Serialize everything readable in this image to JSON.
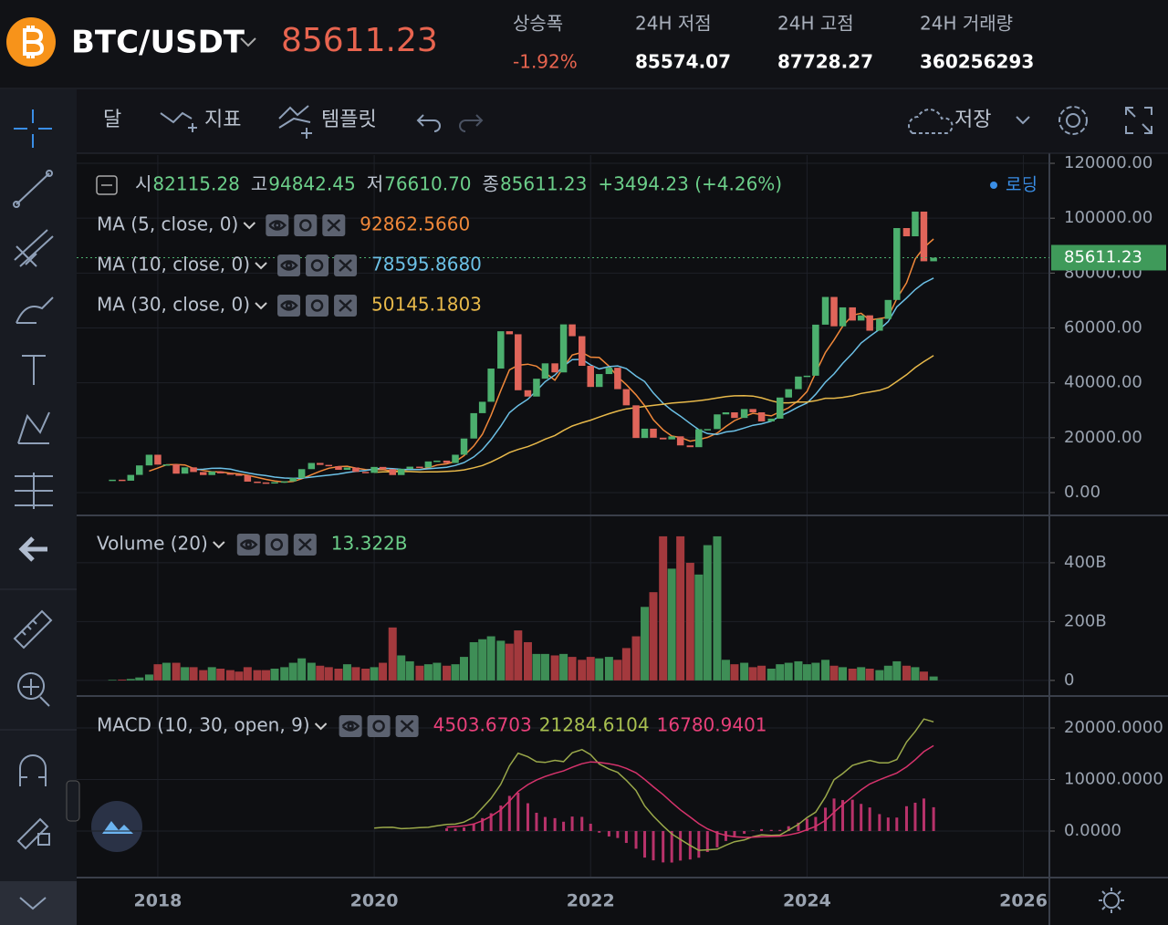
{
  "header": {
    "pair": "BTC/USDT",
    "price": "85611.23",
    "stats": [
      {
        "label": "상승폭",
        "value": "-1.92%"
      },
      {
        "label": "24H 저점",
        "value": "85574.07"
      },
      {
        "label": "24H 고점",
        "value": "87728.27"
      },
      {
        "label": "24H 거래량",
        "value": "360256293"
      }
    ]
  },
  "toolbar": {
    "interval": "달",
    "indicators": "지표",
    "templates": "템플릿",
    "save": "저장"
  },
  "chart_data": [
    {
      "type": "candlestick",
      "up_color": "#4caf6e",
      "down_color": "#e0655a",
      "x": [
        2017.58,
        2017.67,
        2017.75,
        2017.83,
        2017.92,
        2018.0,
        2018.08,
        2018.17,
        2018.25,
        2018.33,
        2018.42,
        2018.5,
        2018.58,
        2018.67,
        2018.75,
        2018.83,
        2018.92,
        2019.0,
        2019.08,
        2019.17,
        2019.25,
        2019.33,
        2019.42,
        2019.5,
        2019.58,
        2019.67,
        2019.75,
        2019.83,
        2019.92,
        2020.0,
        2020.08,
        2020.17,
        2020.25,
        2020.33,
        2020.42,
        2020.5,
        2020.58,
        2020.67,
        2020.75,
        2020.83,
        2020.92,
        2021.0,
        2021.08,
        2021.17,
        2021.25,
        2021.33,
        2021.42,
        2021.5,
        2021.58,
        2021.67,
        2021.75,
        2021.83,
        2021.92,
        2022.0,
        2022.08,
        2022.17,
        2022.25,
        2022.33,
        2022.42,
        2022.5,
        2022.58,
        2022.67,
        2022.75,
        2022.83,
        2022.92,
        2023.0,
        2023.08,
        2023.17,
        2023.25,
        2023.33,
        2023.42,
        2023.5,
        2023.58,
        2023.67,
        2023.75,
        2023.83,
        2023.92,
        2024.0,
        2024.08,
        2024.17,
        2024.25,
        2024.33,
        2024.42,
        2024.5,
        2024.58,
        2024.67,
        2024.75,
        2024.83,
        2024.92,
        2025.0,
        2025.08,
        2025.17
      ],
      "values": [
        4700,
        4340,
        6450,
        9900,
        13800,
        10200,
        10300,
        6900,
        9200,
        7500,
        6400,
        7700,
        7000,
        6600,
        6300,
        4000,
        3700,
        3450,
        3800,
        4100,
        5300,
        8550,
        10800,
        10100,
        9600,
        8300,
        9150,
        7550,
        7200,
        9350,
        8550,
        6400,
        8650,
        9450,
        9140,
        11350,
        11650,
        10780,
        13800,
        19700,
        28950,
        33100,
        45200,
        58800,
        57700,
        37300,
        35000,
        41500,
        47100,
        43800,
        61300,
        57000,
        46200,
        38500,
        43200,
        45500,
        37700,
        31800,
        19900,
        23300,
        20000,
        19400,
        20500,
        17200,
        16550,
        23100,
        23150,
        28500,
        29250,
        27200,
        30450,
        29250,
        25950,
        26950,
        34650,
        37700,
        42300,
        42600,
        61200,
        71300,
        60600,
        67500,
        62700,
        64600,
        59000,
        63300,
        70200,
        96400,
        93400,
        102400,
        84300,
        85611.23
      ],
      "xlim": [
        2017.25,
        2026.24
      ],
      "xticks": [
        2018,
        2020,
        2022,
        2024,
        2026
      ],
      "ylim": [
        -7650,
        123000
      ],
      "yticks": [
        {
          "value": 120000,
          "label": "120000.00"
        },
        {
          "value": 100000,
          "label": "100000.00"
        },
        {
          "value": 80000,
          "label": "80000.00"
        },
        {
          "value": 60000,
          "label": "60000.00"
        },
        {
          "value": 40000,
          "label": "40000.00"
        },
        {
          "value": 20000,
          "label": "20000.00"
        },
        {
          "value": 0,
          "label": "0.00"
        }
      ],
      "grid": true,
      "ohlc": [
        {
          "label": "시",
          "value": "82115.28"
        },
        {
          "label": "고",
          "value": "94842.45"
        },
        {
          "label": "저",
          "value": "76610.70"
        },
        {
          "label": "종",
          "value": "85611.23"
        }
      ],
      "change": "+3494.23 (+4.26%)",
      "status": "로딩",
      "moving_averages": [
        {
          "name": "MA (5, close, 0)",
          "color": "#f0883a",
          "value": "92862.5660"
        },
        {
          "name": "MA (10, close, 0)",
          "color": "#6cc0e6",
          "value": "78595.8680"
        },
        {
          "name": "MA (30, close, 0)",
          "color": "#e8b94a",
          "value": "50145.1803"
        }
      ]
    },
    {
      "type": "volume",
      "name": "Volume (20)",
      "value_label": "13.322B",
      "up_color": "#3e8e56",
      "down_color": "#a3393d",
      "values": [
        2,
        3,
        5,
        10,
        20,
        55,
        60,
        60,
        45,
        45,
        35,
        45,
        40,
        35,
        30,
        45,
        35,
        35,
        40,
        45,
        60,
        75,
        60,
        50,
        45,
        40,
        55,
        45,
        40,
        45,
        60,
        180,
        85,
        65,
        50,
        55,
        60,
        50,
        55,
        80,
        130,
        140,
        150,
        135,
        125,
        170,
        130,
        90,
        90,
        85,
        90,
        80,
        70,
        80,
        75,
        80,
        70,
        110,
        150,
        250,
        300,
        490,
        380,
        490,
        400,
        360,
        460,
        490,
        70,
        55,
        60,
        45,
        50,
        40,
        55,
        60,
        65,
        55,
        60,
        70,
        50,
        45,
        40,
        45,
        40,
        35,
        50,
        65,
        50,
        45,
        30,
        13.322
      ],
      "ylim": [
        -50,
        558
      ],
      "yticks": [
        {
          "value": 400,
          "label": "400B"
        },
        {
          "value": 200,
          "label": "200B"
        },
        0
      ]
    },
    {
      "type": "macd",
      "name": "MACD (10, 30, open, 9)",
      "macd_color": "#9aa84a",
      "signal_color": "#d6336c",
      "hist_color": "#b8326a",
      "readings": [
        {
          "value": "4503.6703",
          "color": "#e8407a"
        },
        {
          "value": "21284.6104",
          "color": "#a8c050"
        },
        {
          "value": "16780.9401",
          "color": "#e8407a"
        }
      ],
      "ylim": [
        -8670,
        25840
      ],
      "yticks": [
        {
          "value": 20000,
          "label": "20000.0000"
        },
        {
          "value": 10000,
          "label": "10000.0000"
        },
        {
          "value": 0,
          "label": "0.0000"
        }
      ]
    }
  ]
}
